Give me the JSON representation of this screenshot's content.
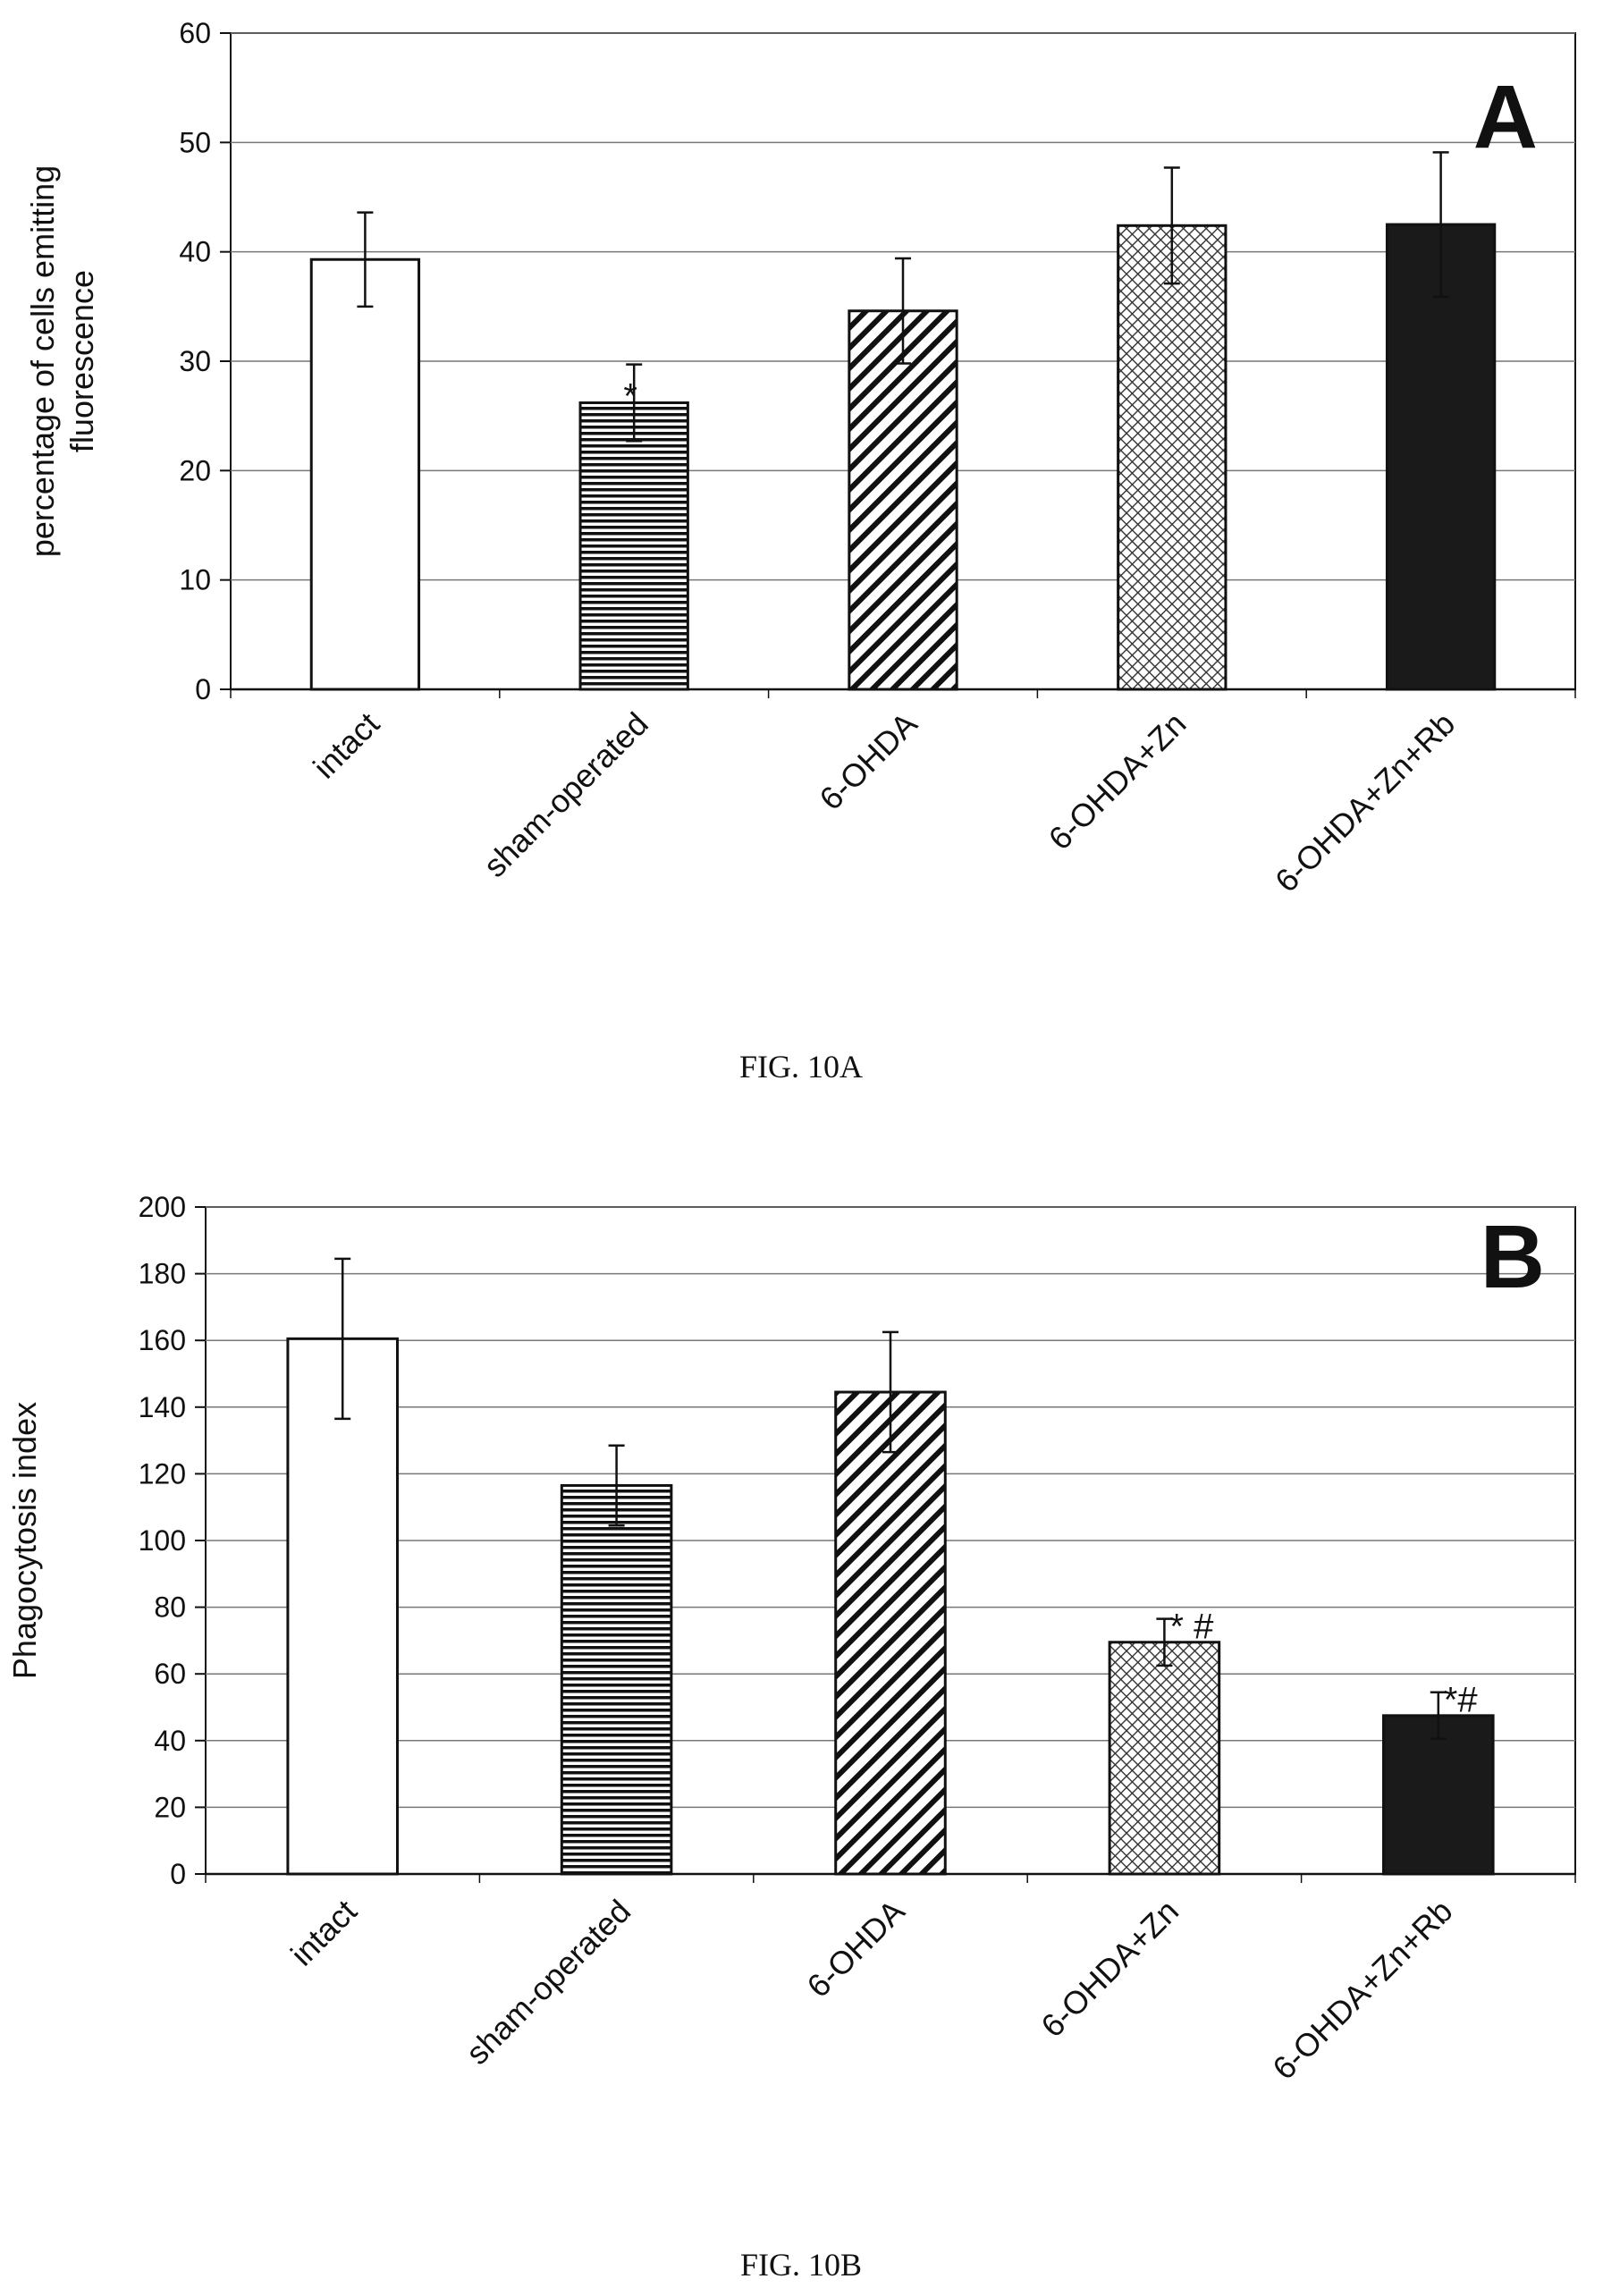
{
  "chart_data": [
    {
      "type": "bar",
      "panel_label": "A",
      "caption": "FIG. 10A",
      "categories": [
        "intact",
        "sham-operated",
        "6-OHDA",
        "6-OHDA+Zn",
        "6-OHDA+Zn+Rb"
      ],
      "values": [
        39.3,
        26.2,
        34.6,
        42.4,
        42.5
      ],
      "errors": [
        4.3,
        3.5,
        4.8,
        5.3,
        6.6
      ],
      "annotations": [
        "",
        "*",
        "",
        "",
        ""
      ],
      "patterns": [
        "white",
        "hlines",
        "diag",
        "cross",
        "solid"
      ],
      "ylabel": [
        "percentage of cells emitting",
        "fluorescence"
      ],
      "ylim": [
        0,
        60
      ],
      "yticks": [
        0,
        10,
        20,
        30,
        40,
        50,
        60
      ],
      "grid": true
    },
    {
      "type": "bar",
      "panel_label": "B",
      "caption": "FIG. 10B",
      "categories": [
        "intact",
        "sham-operated",
        "6-OHDA",
        "6-OHDA+Zn",
        "6-OHDA+Zn+Rb"
      ],
      "values": [
        160.5,
        116.5,
        144.5,
        69.5,
        47.5
      ],
      "errors": [
        24,
        12,
        18,
        7,
        7
      ],
      "annotations": [
        "",
        "",
        "",
        "* #",
        "*#"
      ],
      "patterns": [
        "white",
        "hlines",
        "diag",
        "cross",
        "solid"
      ],
      "ylabel": [
        "Phagocytosis index"
      ],
      "ylim": [
        0,
        200
      ],
      "yticks": [
        0,
        20,
        40,
        60,
        80,
        100,
        120,
        140,
        160,
        180,
        200
      ],
      "grid": true
    }
  ],
  "colors": {
    "bar_outline": "#111111",
    "solid_fill": "#1a1a1a",
    "grid": "#777777"
  }
}
